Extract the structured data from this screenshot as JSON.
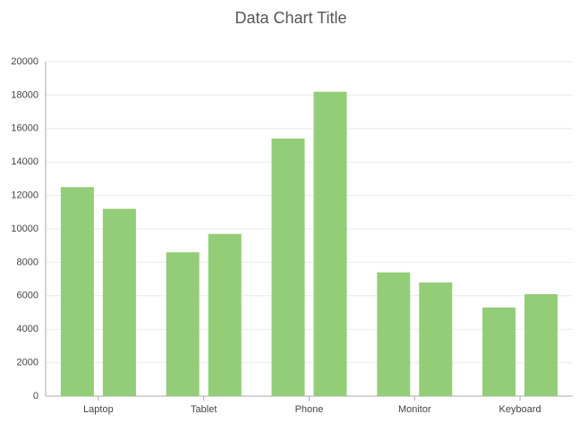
{
  "chart_data": {
    "type": "bar",
    "title": "Data Chart Title",
    "categories": [
      "Laptop",
      "Tablet",
      "Phone",
      "Monitor",
      "Keyboard"
    ],
    "series": [
      {
        "color": "#93cd78",
        "values": [
          12500,
          8600,
          15400,
          7400,
          5300
        ]
      },
      {
        "color": "#93cd78",
        "values": [
          11200,
          9700,
          18200,
          6800,
          6100
        ]
      }
    ],
    "ylim": [
      0,
      20000
    ],
    "yticks": [
      0,
      2000,
      4000,
      6000,
      8000,
      10000,
      12000,
      14000,
      16000,
      18000,
      20000
    ],
    "grid": true
  }
}
